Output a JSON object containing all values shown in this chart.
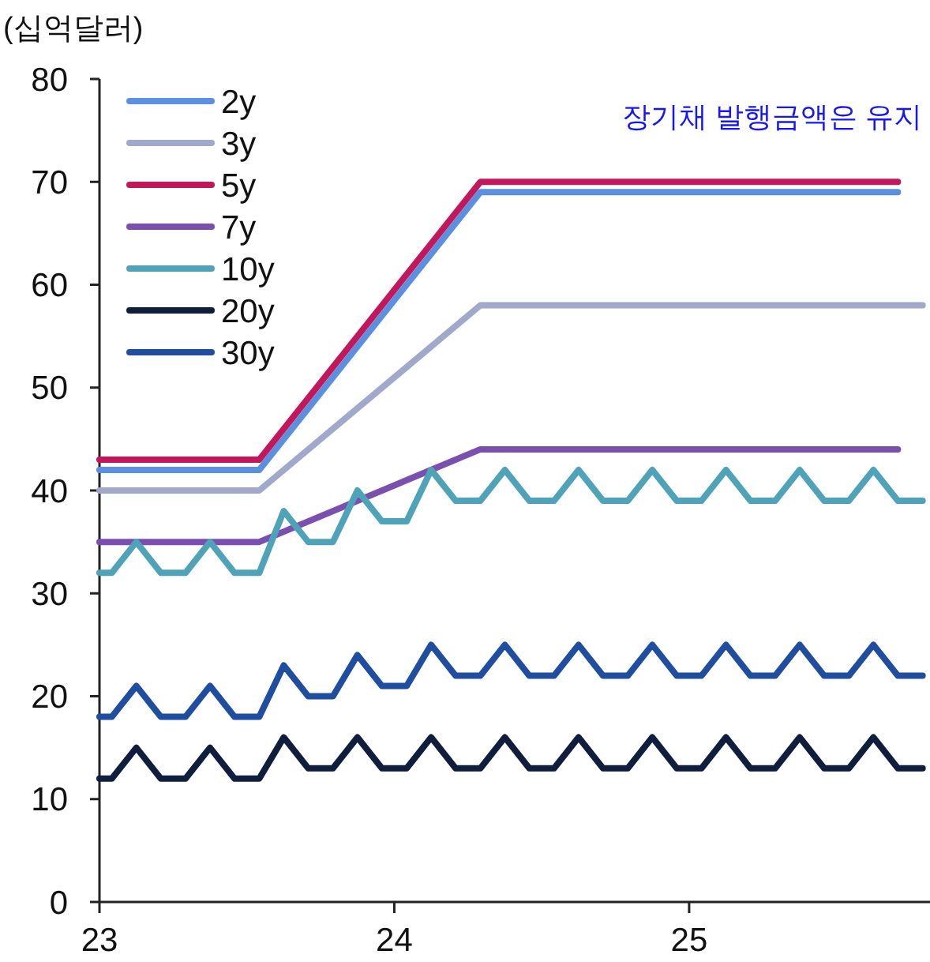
{
  "chart_data": {
    "type": "line",
    "ylabel": "(십억달러)",
    "annotations": [
      "장기채 발행금액은 유지"
    ],
    "xlim": [
      23,
      25.817
    ],
    "xticks": [
      23,
      24,
      25
    ],
    "ylim": [
      0,
      80
    ],
    "yticks": [
      0,
      10,
      20,
      30,
      40,
      50,
      60,
      70,
      80
    ],
    "grid": false,
    "legend": "top left",
    "marker": "none",
    "line_style": "solid",
    "series": [
      {
        "name": "2y",
        "color": "#5b8fe0",
        "x": [
          23,
          23.542,
          24.292,
          25.708
        ],
        "values": [
          42,
          42,
          69,
          69
        ]
      },
      {
        "name": "3y",
        "color": "#a0a8cc",
        "x": [
          23,
          23.542,
          24.292,
          25.792
        ],
        "values": [
          40,
          40,
          58,
          58
        ]
      },
      {
        "name": "5y",
        "color": "#c2185b",
        "x": [
          23,
          23.542,
          24.292,
          25.708
        ],
        "values": [
          43,
          43,
          70,
          70
        ]
      },
      {
        "name": "7y",
        "color": "#7b4fb0",
        "x": [
          23,
          23.542,
          24.292,
          25.708
        ],
        "values": [
          35,
          35,
          44,
          44
        ]
      },
      {
        "name": "10y",
        "color": "#4fa3b8",
        "x": [
          23,
          23.042,
          23.125,
          23.208,
          23.292,
          23.375,
          23.458,
          23.542,
          23.625,
          23.708,
          23.792,
          23.875,
          23.958,
          24.042,
          24.125,
          24.208,
          24.292,
          24.375,
          24.458,
          24.542,
          24.625,
          24.708,
          24.792,
          24.875,
          24.958,
          25.042,
          25.125,
          25.208,
          25.292,
          25.375,
          25.458,
          25.542,
          25.625,
          25.708,
          25.792
        ],
        "values": [
          32,
          32,
          35,
          32,
          32,
          35,
          32,
          32,
          38,
          35,
          35,
          40,
          37,
          37,
          42,
          39,
          39,
          42,
          39,
          39,
          42,
          39,
          39,
          42,
          39,
          39,
          42,
          39,
          39,
          42,
          39,
          39,
          42,
          39,
          39
        ]
      },
      {
        "name": "20y",
        "color": "#0f1e3d",
        "x": [
          23,
          23.042,
          23.125,
          23.208,
          23.292,
          23.375,
          23.458,
          23.542,
          23.625,
          23.708,
          23.792,
          23.875,
          23.958,
          24.042,
          24.125,
          24.208,
          24.292,
          24.375,
          24.458,
          24.542,
          24.625,
          24.708,
          24.792,
          24.875,
          24.958,
          25.042,
          25.125,
          25.208,
          25.292,
          25.375,
          25.458,
          25.542,
          25.625,
          25.708,
          25.792
        ],
        "values": [
          12,
          12,
          15,
          12,
          12,
          15,
          12,
          12,
          16,
          13,
          13,
          16,
          13,
          13,
          16,
          13,
          13,
          16,
          13,
          13,
          16,
          13,
          13,
          16,
          13,
          13,
          16,
          13,
          13,
          16,
          13,
          13,
          16,
          13,
          13
        ]
      },
      {
        "name": "30y",
        "color": "#1f4ea0",
        "x": [
          23,
          23.042,
          23.125,
          23.208,
          23.292,
          23.375,
          23.458,
          23.542,
          23.625,
          23.708,
          23.792,
          23.875,
          23.958,
          24.042,
          24.125,
          24.208,
          24.292,
          24.375,
          24.458,
          24.542,
          24.625,
          24.708,
          24.792,
          24.875,
          24.958,
          25.042,
          25.125,
          25.208,
          25.292,
          25.375,
          25.458,
          25.542,
          25.625,
          25.708,
          25.792
        ],
        "values": [
          18,
          18,
          21,
          18,
          18,
          21,
          18,
          18,
          23,
          20,
          20,
          24,
          21,
          21,
          25,
          22,
          22,
          25,
          22,
          22,
          25,
          22,
          22,
          25,
          22,
          22,
          25,
          22,
          22,
          25,
          22,
          22,
          25,
          22,
          22
        ]
      }
    ]
  }
}
